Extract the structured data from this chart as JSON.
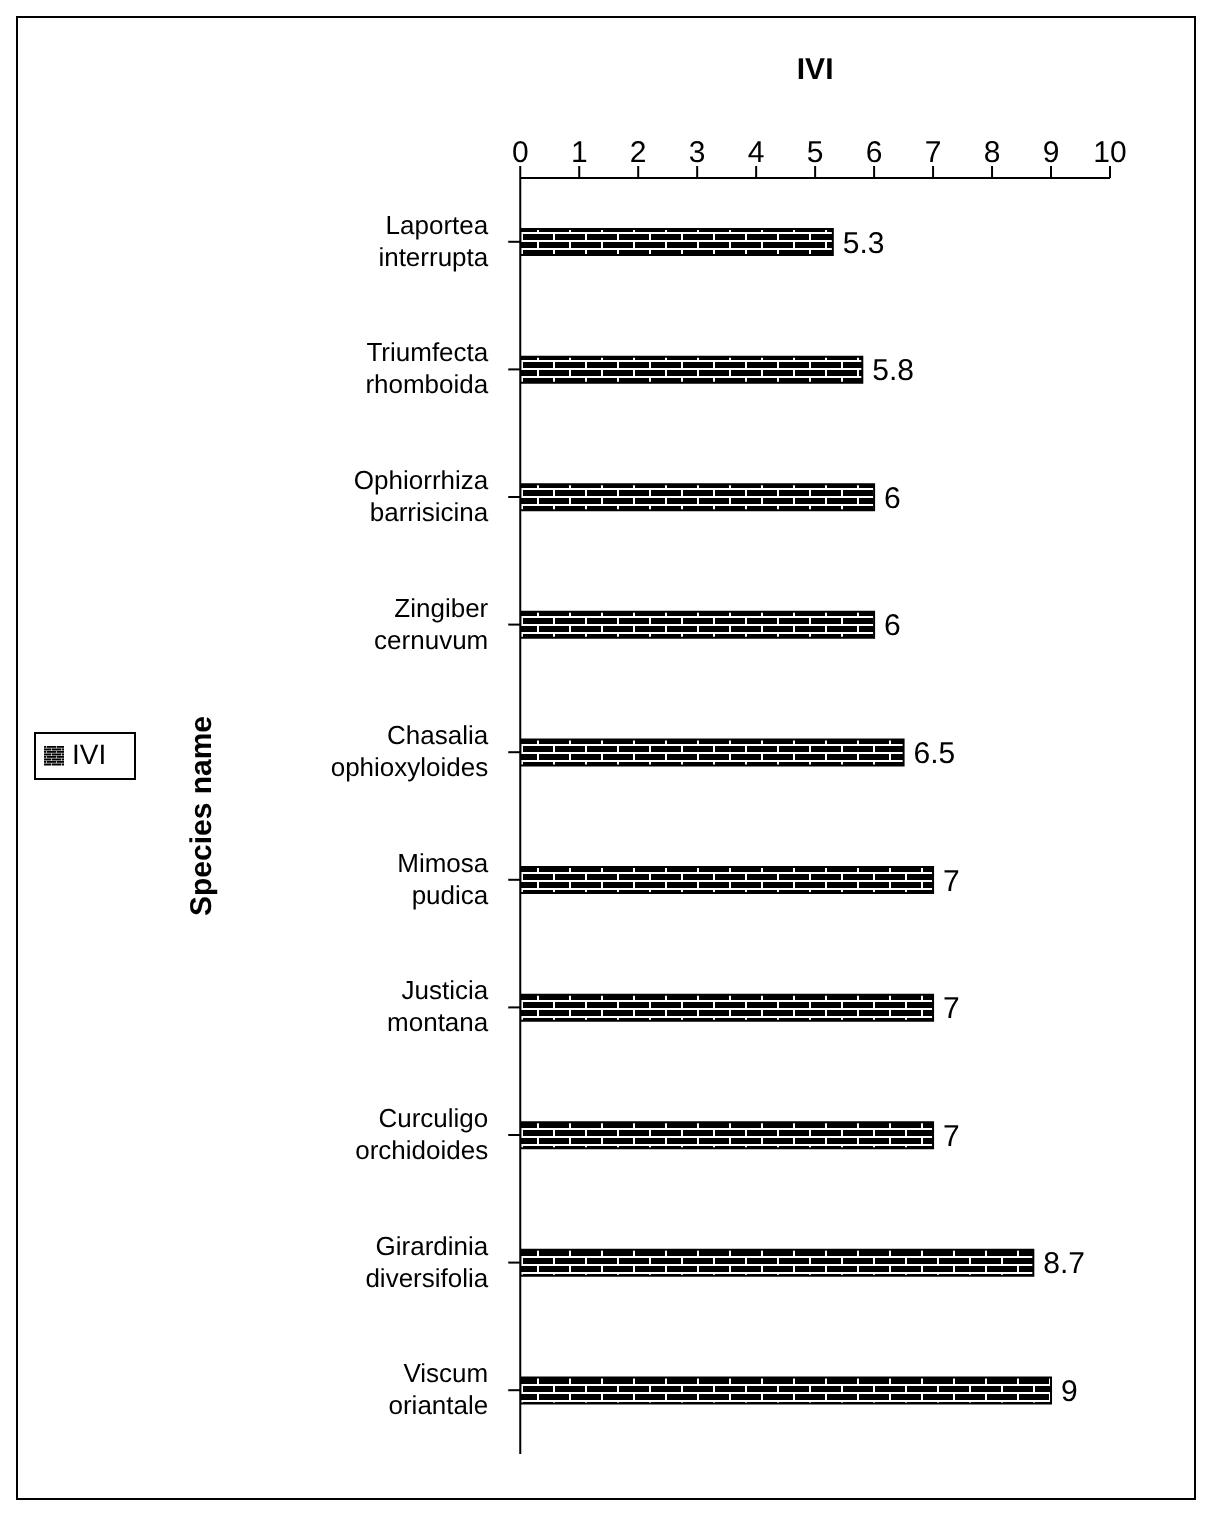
{
  "chart_data": {
    "type": "bar",
    "orientation": "horizontal",
    "xlabel": "IVI",
    "ylabel": "Species name",
    "categories": [
      "Laportea interrupta",
      "Triumfecta rhomboida",
      "Ophiorrhiza barrisicina",
      "Zingiber cernuvum",
      "Chasalia ophioxyloides",
      "Mimosa pudica",
      "Justicia montana",
      "Curculigo orchidoides",
      "Girardinia diversifolia",
      "Viscum oriantale"
    ],
    "series": [
      {
        "name": "IVI",
        "color": "#000000",
        "values": [
          5.3,
          5.8,
          6,
          6,
          6.5,
          7,
          7,
          7,
          8.7,
          9
        ]
      }
    ],
    "xlim": [
      0,
      10
    ],
    "xticks": [
      0,
      1,
      2,
      3,
      4,
      5,
      6,
      7,
      8,
      9,
      10
    ],
    "data_labels": true,
    "legend": "left"
  }
}
